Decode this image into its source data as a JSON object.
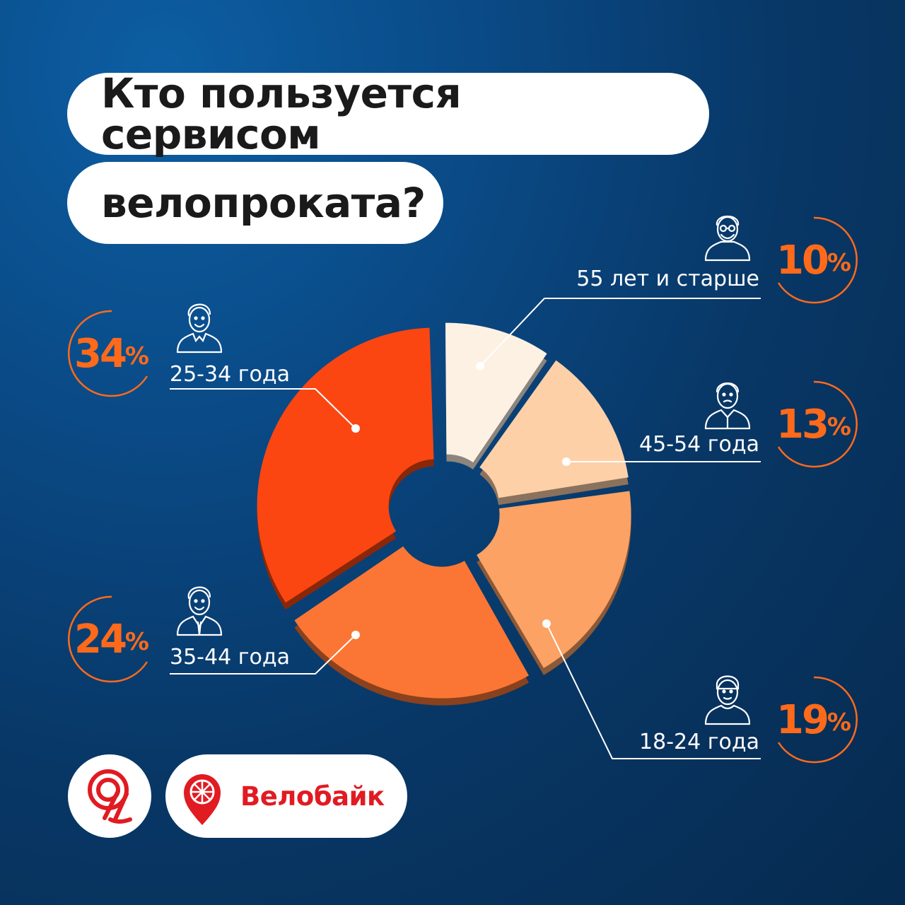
{
  "title": {
    "line1": "Кто пользуется сервисом",
    "line2": "велопроката?"
  },
  "chart_data": {
    "type": "pie",
    "title": "Кто пользуется сервисом велопроката?",
    "categories": [
      "55 лет и старше",
      "45-54 года",
      "18-24 года",
      "35-44 года",
      "25-34 года"
    ],
    "values": [
      10,
      13,
      19,
      24,
      34
    ],
    "colors": [
      "#fdf1e3",
      "#fdd0a8",
      "#fca264",
      "#fb7634",
      "#fb4611"
    ],
    "labels": [
      "10%",
      "13%",
      "19%",
      "24%",
      "34%"
    ],
    "style": "exploded donut"
  },
  "badges": {
    "b55": {
      "num": "10",
      "pct": "%"
    },
    "b45": {
      "num": "13",
      "pct": "%"
    },
    "b18": {
      "num": "19",
      "pct": "%"
    },
    "b35": {
      "num": "24",
      "pct": "%"
    },
    "b25": {
      "num": "34",
      "pct": "%"
    }
  },
  "icons": {
    "elderly": "elderly-man-icon",
    "middle": "middle-aged-man-icon",
    "young": "young-man-icon",
    "adult": "man-in-suit-icon",
    "youngadult": "man-in-jacket-icon"
  },
  "logos": {
    "metro": "moscow-transport-logo",
    "velobike_name": "Велобайк"
  },
  "accent_color": "#ff6a1a",
  "brand_red": "#e11b22"
}
